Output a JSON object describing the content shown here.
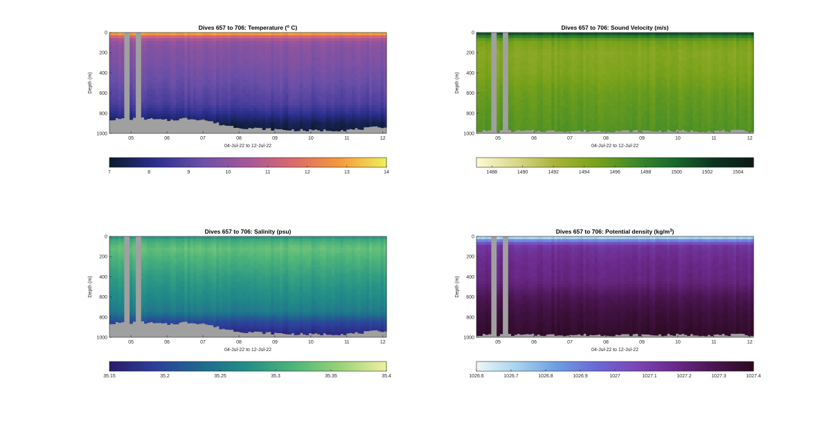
{
  "chart_data": [
    {
      "type": "heatmap",
      "title": "Dives 657 to 706: Temperature (",
      "title_sup": "o",
      "title_tail": " C)",
      "ylabel": "Depth (m)",
      "xlabel": "04-Jul-22 to 12-Jul-22",
      "ylim": [
        0,
        1000
      ],
      "y_reversed": true,
      "yticks": [
        0,
        200,
        400,
        600,
        800,
        1000
      ],
      "xlim": [
        4.4,
        12.1
      ],
      "xticks": [
        5,
        6,
        7,
        8,
        9,
        10,
        11,
        12
      ],
      "xticklabels": [
        "05",
        "06",
        "07",
        "08",
        "09",
        "10",
        "11",
        "12"
      ],
      "colorbar": {
        "min": 7,
        "max": 14,
        "ticks": [
          7,
          8,
          9,
          10,
          11,
          12,
          13,
          14
        ],
        "ticklabels": [
          "7",
          "8",
          "9",
          "10",
          "11",
          "12",
          "13",
          "14"
        ]
      },
      "colormap": [
        "#0b1a2c",
        "#2c2f8f",
        "#6a4fa8",
        "#a5579a",
        "#dc6a6a",
        "#f59a3c",
        "#eef05a"
      ],
      "profile": {
        "depth": [
          0,
          40,
          80,
          150,
          300,
          500,
          700,
          800,
          900,
          1000
        ],
        "value": [
          13.5,
          11.5,
          10.2,
          9.9,
          9.7,
          9.3,
          8.8,
          8.2,
          7.4,
          7.1
        ]
      },
      "missing_color": "#a0a0a0",
      "gaps": [
        [
          4.8,
          4.97
        ],
        [
          5.1,
          5.27
        ]
      ],
      "bottom_depth": [
        {
          "x": 4.4,
          "d": 870
        },
        {
          "x": 5.3,
          "d": 860
        },
        {
          "x": 6.0,
          "d": 880
        },
        {
          "x": 6.5,
          "d": 860
        },
        {
          "x": 7.0,
          "d": 870
        },
        {
          "x": 7.5,
          "d": 920
        },
        {
          "x": 8.0,
          "d": 950
        },
        {
          "x": 8.5,
          "d": 960
        },
        {
          "x": 9.0,
          "d": 970
        },
        {
          "x": 10.0,
          "d": 980
        },
        {
          "x": 11.0,
          "d": 975
        },
        {
          "x": 11.5,
          "d": 960
        },
        {
          "x": 12.1,
          "d": 940
        }
      ]
    },
    {
      "type": "heatmap",
      "title": "Dives 657 to 706: Sound Velocity (m/s)",
      "ylabel": "Depth (m)",
      "xlabel": "04-Jul-22 to 12-Jul-22",
      "ylim": [
        0,
        1000
      ],
      "y_reversed": true,
      "yticks": [
        0,
        200,
        400,
        600,
        800,
        1000
      ],
      "xlim": [
        4.4,
        12.1
      ],
      "xticks": [
        5,
        6,
        7,
        8,
        9,
        10,
        11,
        12
      ],
      "xticklabels": [
        "05",
        "06",
        "07",
        "08",
        "09",
        "10",
        "11",
        "12"
      ],
      "colorbar": {
        "min": 1487,
        "max": 1505,
        "ticks": [
          1488,
          1490,
          1492,
          1494,
          1496,
          1498,
          1500,
          1502,
          1504
        ],
        "ticklabels": [
          "1488",
          "1490",
          "1492",
          "1494",
          "1496",
          "1498",
          "1500",
          "1502",
          "1504"
        ]
      },
      "colormap": [
        "#fdfbd3",
        "#d9d88a",
        "#a8b23a",
        "#7aa21a",
        "#3f8a2a",
        "#17682c",
        "#0d3320",
        "#0b1a14"
      ],
      "profile": {
        "depth": [
          0,
          30,
          80,
          200,
          400,
          600,
          800,
          1000
        ],
        "value": [
          1502,
          1499,
          1495,
          1494,
          1494.5,
          1495.5,
          1496,
          1496.5
        ]
      },
      "missing_color": "#a0a0a0",
      "gaps": [
        [
          4.8,
          4.97
        ],
        [
          5.1,
          5.27
        ]
      ],
      "bottom_depth": [
        {
          "x": 4.4,
          "d": 985
        },
        {
          "x": 12.1,
          "d": 985
        }
      ]
    },
    {
      "type": "heatmap",
      "title": "Dives 657 to 706: Salinity (psu)",
      "ylabel": "Depth (m)",
      "xlabel": "04-Jul-22 to 12-Jul-22",
      "ylim": [
        0,
        1000
      ],
      "y_reversed": true,
      "yticks": [
        0,
        200,
        400,
        600,
        800,
        1000
      ],
      "xlim": [
        4.4,
        12.1
      ],
      "xticks": [
        5,
        6,
        7,
        8,
        9,
        10,
        11,
        12
      ],
      "xticklabels": [
        "05",
        "06",
        "07",
        "08",
        "09",
        "10",
        "11",
        "12"
      ],
      "colorbar": {
        "min": 35.15,
        "max": 35.4,
        "ticks": [
          35.15,
          35.2,
          35.25,
          35.3,
          35.35,
          35.4
        ],
        "ticklabels": [
          "35.15",
          "35.2",
          "35.25",
          "35.3",
          "35.35",
          "35.4"
        ]
      },
      "colormap": [
        "#2a1a6a",
        "#2d3f9b",
        "#1f6a8e",
        "#238f87",
        "#4fb57a",
        "#99d27a",
        "#eef0a0"
      ],
      "profile": {
        "depth": [
          0,
          50,
          120,
          250,
          400,
          600,
          750,
          850,
          950,
          1000
        ],
        "value": [
          35.28,
          35.31,
          35.33,
          35.31,
          35.29,
          35.27,
          35.25,
          35.2,
          35.17,
          35.16
        ]
      },
      "missing_color": "#a0a0a0",
      "gaps": [
        [
          4.8,
          4.97
        ],
        [
          5.1,
          5.27
        ]
      ],
      "bottom_depth": [
        {
          "x": 4.4,
          "d": 870
        },
        {
          "x": 5.3,
          "d": 860
        },
        {
          "x": 6.0,
          "d": 880
        },
        {
          "x": 6.5,
          "d": 860
        },
        {
          "x": 7.0,
          "d": 870
        },
        {
          "x": 7.5,
          "d": 920
        },
        {
          "x": 8.0,
          "d": 950
        },
        {
          "x": 8.5,
          "d": 960
        },
        {
          "x": 9.0,
          "d": 970
        },
        {
          "x": 10.0,
          "d": 980
        },
        {
          "x": 11.0,
          "d": 975
        },
        {
          "x": 11.5,
          "d": 960
        },
        {
          "x": 12.1,
          "d": 940
        }
      ]
    },
    {
      "type": "heatmap",
      "title": "Dives 657 to 706: Potential density (kg/m",
      "title_sup": "3",
      "title_tail": ")",
      "ylabel": "Depth (m)",
      "xlabel": "04-Jul-22 to 12-Jul-22",
      "ylim": [
        0,
        1000
      ],
      "y_reversed": true,
      "yticks": [
        0,
        200,
        400,
        600,
        800,
        1000
      ],
      "xlim": [
        4.4,
        12.1
      ],
      "xticks": [
        5,
        6,
        7,
        8,
        9,
        10,
        11,
        12
      ],
      "xticklabels": [
        "05",
        "06",
        "07",
        "08",
        "09",
        "10",
        "11",
        "12"
      ],
      "colorbar": {
        "min": 1026.6,
        "max": 1027.4,
        "ticks": [
          1026.6,
          1026.7,
          1026.8,
          1026.9,
          1027,
          1027.1,
          1027.2,
          1027.3,
          1027.4
        ],
        "ticklabels": [
          "1026.6",
          "1026.7",
          "1026.8",
          "1026.9",
          "1027",
          "1027.1",
          "1027.2",
          "1027.3",
          "1027.4"
        ]
      },
      "colormap": [
        "#eef7f7",
        "#a9d3ee",
        "#6f9fe0",
        "#6a6ad8",
        "#7a48b8",
        "#6a2a8a",
        "#4a1550",
        "#2a0a20"
      ],
      "profile": {
        "depth": [
          0,
          30,
          60,
          100,
          250,
          450,
          600,
          750,
          900,
          1000
        ],
        "value": [
          1026.65,
          1026.8,
          1027.0,
          1027.13,
          1027.17,
          1027.2,
          1027.28,
          1027.33,
          1027.36,
          1027.38
        ]
      },
      "missing_color": "#a0a0a0",
      "gaps": [
        [
          4.8,
          4.97
        ],
        [
          5.1,
          5.27
        ]
      ],
      "bottom_depth": [
        {
          "x": 4.4,
          "d": 985
        },
        {
          "x": 12.1,
          "d": 985
        }
      ]
    }
  ]
}
